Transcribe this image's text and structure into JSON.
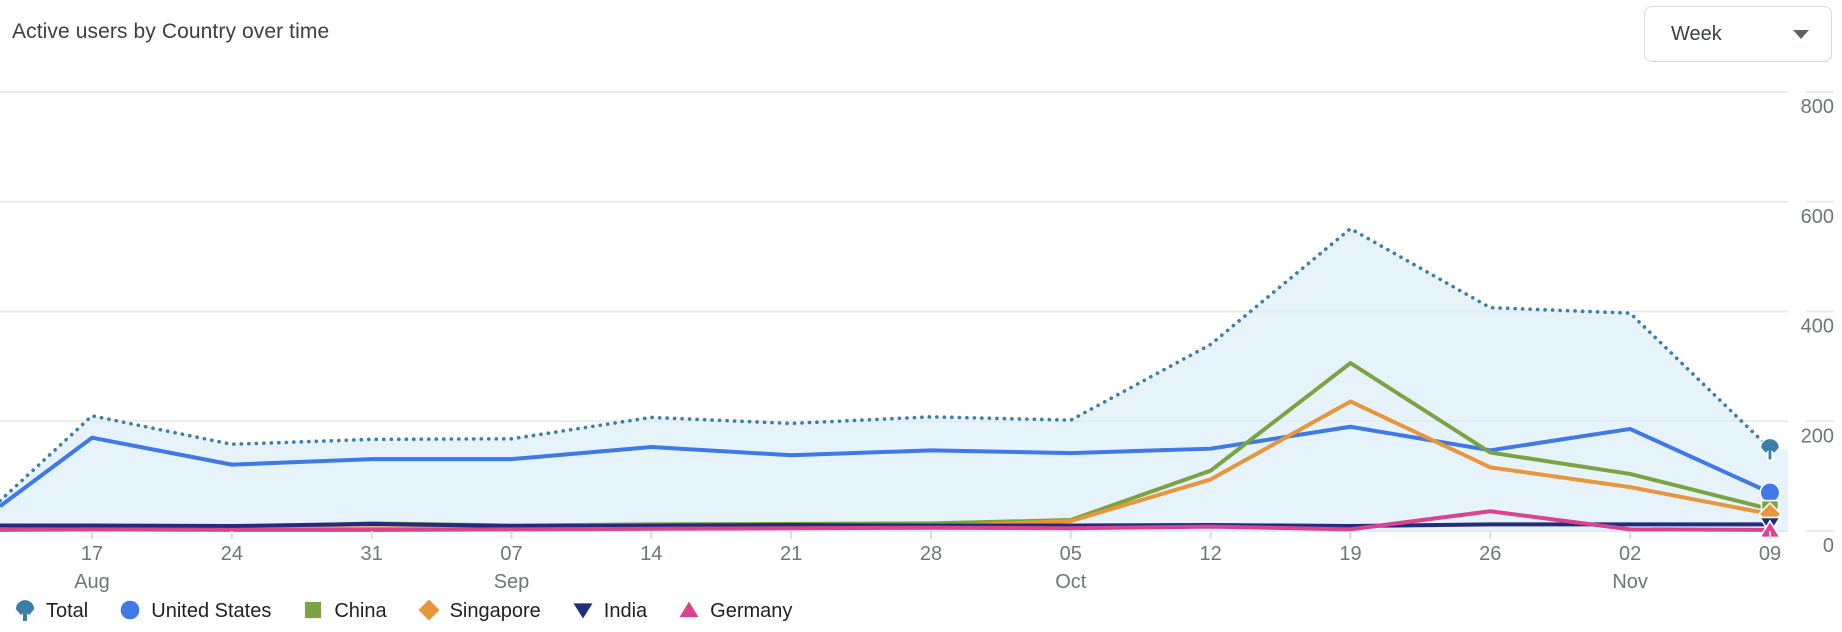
{
  "header": {
    "title": "Active users by Country over time",
    "granularity_dropdown": {
      "value": "Week",
      "caret_icon": "chevron-down-icon"
    }
  },
  "chart_data": {
    "type": "line",
    "title": "Active users by Country over time",
    "xlabel": "",
    "ylabel": "",
    "ylim": [
      0,
      800
    ],
    "y_ticks": [
      800,
      600,
      400,
      200,
      0
    ],
    "grid": "horizontal",
    "legend_position": "bottom",
    "x_note": "first point is clipped at left plot edge and unlabeled; axis labeled weekly",
    "x_ticks": [
      {
        "day": "17",
        "month": "Aug"
      },
      {
        "day": "24",
        "month": ""
      },
      {
        "day": "31",
        "month": ""
      },
      {
        "day": "07",
        "month": "Sep"
      },
      {
        "day": "14",
        "month": ""
      },
      {
        "day": "21",
        "month": ""
      },
      {
        "day": "28",
        "month": ""
      },
      {
        "day": "05",
        "month": "Oct"
      },
      {
        "day": "12",
        "month": ""
      },
      {
        "day": "19",
        "month": ""
      },
      {
        "day": "26",
        "month": ""
      },
      {
        "day": "02",
        "month": "Nov"
      },
      {
        "day": "09",
        "month": ""
      }
    ],
    "categories": [
      "",
      "17 Aug",
      "24 Aug",
      "31 Aug",
      "07 Sep",
      "14 Sep",
      "21 Sep",
      "28 Sep",
      "05 Oct",
      "12 Oct",
      "19 Oct",
      "26 Oct",
      "02 Nov",
      "09 Nov"
    ],
    "series": [
      {
        "name": "Total",
        "color": "#3b7ea8",
        "marker": "fan",
        "line": "dotted",
        "area": true,
        "area_color": "#ddeefa",
        "values": [
          55,
          210,
          158,
          167,
          168,
          207,
          196,
          208,
          202,
          340,
          551,
          407,
          397,
          150
        ]
      },
      {
        "name": "United States",
        "color": "#3e79e7",
        "marker": "circle",
        "line": "solid",
        "area": false,
        "values": [
          45,
          170,
          121,
          131,
          131,
          153,
          138,
          147,
          142,
          150,
          190,
          147,
          186,
          70
        ]
      },
      {
        "name": "China",
        "color": "#7ca342",
        "marker": "square",
        "line": "solid",
        "area": false,
        "values": [
          6,
          8,
          6,
          14,
          10,
          12,
          13,
          14,
          20,
          110,
          306,
          143,
          104,
          40
        ]
      },
      {
        "name": "Singapore",
        "color": "#e8963c",
        "marker": "diamond",
        "line": "solid",
        "area": false,
        "values": [
          3,
          5,
          4,
          5,
          4,
          6,
          8,
          8,
          18,
          94,
          236,
          116,
          80,
          31
        ]
      },
      {
        "name": "India",
        "color": "#222c7e",
        "marker": "triangle-down",
        "line": "solid",
        "area": false,
        "values": [
          10,
          10,
          9,
          13,
          9,
          10,
          11,
          10,
          10,
          11,
          9,
          12,
          12,
          12
        ]
      },
      {
        "name": "Germany",
        "color": "#d8448e",
        "marker": "triangle-up",
        "line": "solid",
        "area": false,
        "values": [
          2,
          3,
          2,
          2,
          3,
          4,
          5,
          6,
          5,
          8,
          3,
          36,
          3,
          2
        ]
      }
    ]
  }
}
